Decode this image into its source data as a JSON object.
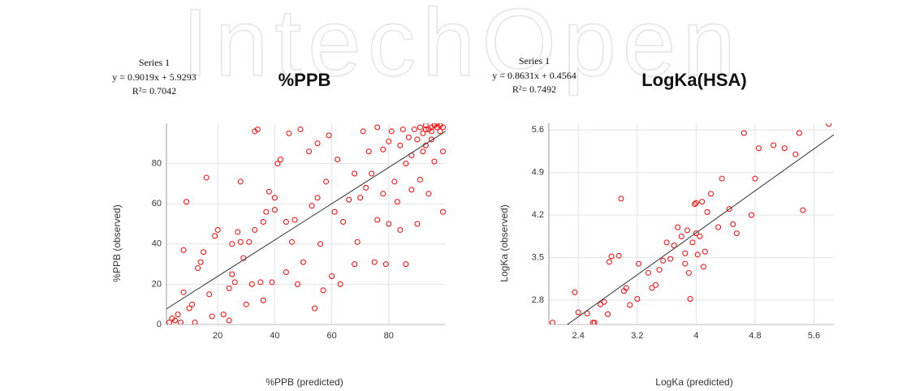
{
  "watermark": "IntechOpen",
  "chart_data": [
    {
      "type": "scatter",
      "title": "%PPB",
      "annotation": {
        "series_label": "Series 1",
        "equation": "y = 0.9019x + 5.9293",
        "r2": "R²= 0.7042"
      },
      "trendline": {
        "slope": 0.9019,
        "intercept": 5.9293
      },
      "x_label": "%PPB (predicted)",
      "y_label": "%PPB (observed)",
      "color": "#ff0000",
      "grid": true,
      "xlim": [
        2,
        100
      ],
      "ylim": [
        0,
        100
      ],
      "xticks": [
        20,
        40,
        60,
        80
      ],
      "yticks": [
        0,
        20,
        40,
        60,
        80
      ],
      "x": [
        3,
        4,
        5,
        6,
        7,
        8,
        8,
        9,
        10,
        11,
        12,
        13,
        14,
        15,
        16,
        17,
        18,
        19,
        20,
        22,
        24,
        24,
        25,
        25,
        26,
        27,
        28,
        28,
        29,
        30,
        31,
        32,
        33,
        33,
        34,
        35,
        36,
        36,
        37,
        38,
        39,
        40,
        40,
        41,
        42,
        44,
        44,
        45,
        46,
        47,
        48,
        49,
        50,
        52,
        53,
        54,
        55,
        55,
        56,
        57,
        58,
        59,
        60,
        61,
        62,
        63,
        64,
        66,
        68,
        68,
        69,
        70,
        71,
        72,
        73,
        74,
        75,
        76,
        76,
        78,
        78,
        79,
        80,
        80,
        81,
        82,
        83,
        84,
        84,
        85,
        86,
        86,
        87,
        88,
        88,
        89,
        90,
        90,
        91,
        91,
        92,
        92,
        93,
        93,
        94,
        94,
        95,
        95,
        96,
        96,
        97,
        97,
        98,
        98,
        99,
        99,
        99,
        95,
        93
      ],
      "y": [
        1,
        3,
        2,
        5,
        1,
        16,
        37,
        61,
        8,
        10,
        1,
        28,
        31,
        36,
        73,
        15,
        4,
        44,
        47,
        5,
        2,
        18,
        25,
        40,
        21,
        46,
        41,
        71,
        33,
        10,
        41,
        20,
        47,
        96,
        97,
        21,
        51,
        12,
        56,
        66,
        21,
        57,
        63,
        80,
        82,
        26,
        51,
        95,
        41,
        52,
        20,
        97,
        31,
        86,
        59,
        8,
        63,
        90,
        40,
        17,
        71,
        94,
        24,
        56,
        82,
        20,
        51,
        62,
        30,
        75,
        41,
        63,
        96,
        68,
        86,
        75,
        31,
        98,
        52,
        87,
        65,
        30,
        50,
        91,
        96,
        71,
        61,
        89,
        47,
        97,
        80,
        30,
        93,
        84,
        67,
        97,
        92,
        50,
        98,
        72,
        86,
        95,
        99,
        89,
        97,
        65,
        98,
        92,
        99,
        81,
        98,
        100,
        96,
        99,
        56,
        86,
        98,
        96,
        97
      ]
    },
    {
      "type": "scatter",
      "title": "LogKa(HSA)",
      "annotation": {
        "series_label": "Series 1",
        "equation": "y = 0.8631x + 0.4564",
        "r2": "R²= 0.7492"
      },
      "trendline": {
        "slope": 0.8631,
        "intercept": 0.4564
      },
      "x_label": "LogKa (predicted)",
      "y_label": "LogKa (observed)",
      "color": "#ff0000",
      "grid": true,
      "xlim": [
        2.0,
        5.87
      ],
      "ylim": [
        2.4,
        5.71
      ],
      "xticks": [
        2.4,
        3.2,
        4,
        4.8,
        5.6
      ],
      "yticks": [
        2.8,
        3.5,
        4.2,
        4.9,
        5.6
      ],
      "x": [
        2.05,
        2.35,
        2.4,
        2.52,
        2.6,
        2.62,
        2.7,
        2.75,
        2.8,
        2.82,
        2.85,
        2.95,
        2.98,
        3.02,
        3.05,
        3.1,
        3.2,
        3.22,
        3.35,
        3.4,
        3.45,
        3.5,
        3.55,
        3.6,
        3.65,
        3.7,
        3.75,
        3.8,
        3.85,
        3.88,
        3.9,
        3.92,
        3.95,
        3.98,
        4.0,
        4.02,
        4.05,
        4.08,
        4.1,
        4.12,
        4.15,
        4.2,
        4.3,
        4.35,
        4.45,
        4.5,
        4.55,
        4.65,
        4.75,
        4.8,
        4.85,
        5.05,
        5.2,
        5.35,
        5.4,
        5.45,
        5.8,
        4.0,
        3.85
      ],
      "y": [
        2.43,
        2.93,
        2.6,
        2.58,
        2.43,
        2.43,
        2.73,
        2.77,
        2.57,
        3.43,
        3.52,
        3.53,
        4.47,
        2.95,
        3.0,
        2.72,
        2.82,
        3.4,
        3.25,
        3.0,
        3.05,
        3.3,
        3.45,
        3.75,
        3.48,
        3.7,
        4.0,
        3.85,
        3.57,
        3.95,
        3.25,
        2.82,
        3.75,
        4.38,
        3.9,
        3.55,
        3.85,
        4.42,
        3.35,
        3.6,
        4.25,
        4.55,
        4.0,
        4.8,
        4.3,
        4.05,
        3.9,
        5.55,
        4.2,
        4.8,
        5.3,
        5.35,
        5.3,
        5.2,
        5.55,
        4.28,
        5.7,
        4.4,
        3.4
      ]
    }
  ]
}
